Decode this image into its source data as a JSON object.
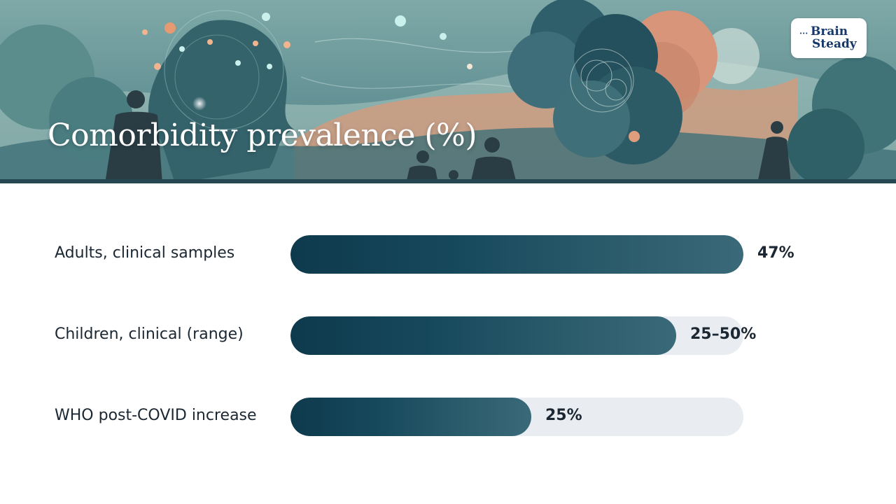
{
  "banner": {
    "title": "Comorbidity prevalence (%)",
    "logo": {
      "line1": "Brain",
      "line2": "Steady",
      "icon": "brain-steady-logo"
    }
  },
  "colors": {
    "bar_dark": "#0e3a4c",
    "bar_light": "#3a6a79",
    "track": "#e9edf1",
    "text": "#1b2733",
    "banner_sky": "#5f8f92",
    "banner_peach": "#e0a183"
  },
  "chart_data": {
    "type": "bar",
    "orientation": "horizontal",
    "title": "Comorbidity prevalence (%)",
    "xlim": [
      0,
      47
    ],
    "categories": [
      "Adults, clinical samples",
      "Children, clinical (range)",
      "WHO post-COVID increase"
    ],
    "values": [
      47,
      40,
      25
    ],
    "value_labels": [
      "47%",
      "25–50%",
      "25%"
    ],
    "grid": false,
    "legend": "none"
  }
}
